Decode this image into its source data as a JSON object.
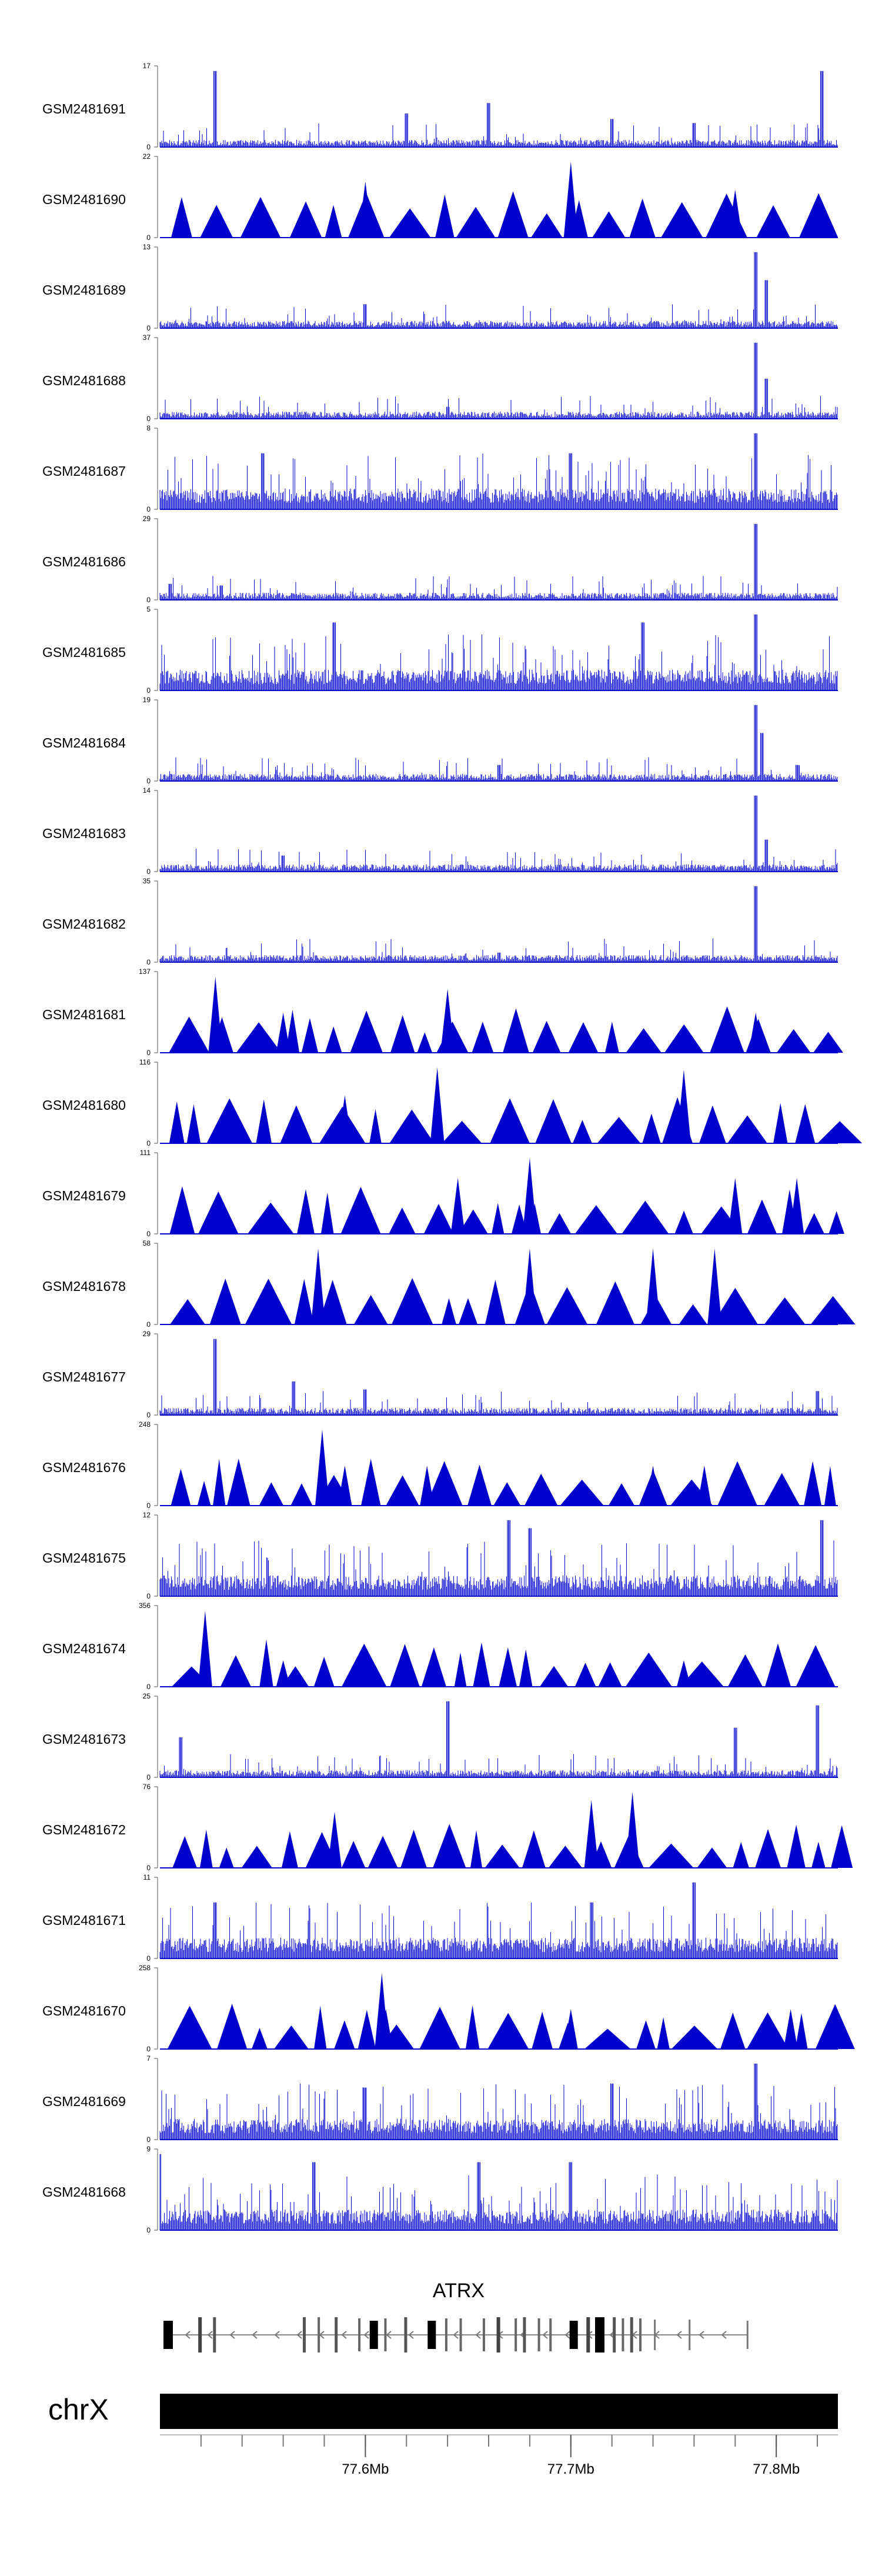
{
  "chart_data": {
    "type": "genome-coverage-tracks",
    "x_range_mb": [
      77.5,
      77.83
    ],
    "bar_color": "#0000cc",
    "tracks": [
      {
        "name": "GSM2481691",
        "ymax": "17",
        "ymin": "0",
        "style": "spiky",
        "peaks": [
          [
            77.527,
            0.95
          ],
          [
            77.62,
            0.42
          ],
          [
            77.66,
            0.55
          ],
          [
            77.72,
            0.35
          ],
          [
            77.76,
            0.3
          ],
          [
            77.822,
            0.95
          ]
        ]
      },
      {
        "name": "GSM2481690",
        "ymax": "22",
        "ymin": "0",
        "style": "triangles",
        "peaks": [
          [
            77.7,
            0.95
          ],
          [
            77.6,
            0.7
          ],
          [
            77.78,
            0.6
          ]
        ]
      },
      {
        "name": "GSM2481689",
        "ymax": "13",
        "ymin": "0",
        "style": "spiky",
        "peaks": [
          [
            77.79,
            0.95
          ],
          [
            77.795,
            0.6
          ],
          [
            77.6,
            0.3
          ]
        ]
      },
      {
        "name": "GSM2481688",
        "ymax": "37",
        "ymin": "0",
        "style": "spiky",
        "peaks": [
          [
            77.79,
            0.95
          ],
          [
            77.795,
            0.5
          ],
          [
            77.64,
            0.15
          ]
        ]
      },
      {
        "name": "GSM2481687",
        "ymax": "8",
        "ymin": "0",
        "style": "dense",
        "peaks": [
          [
            77.79,
            0.95
          ],
          [
            77.55,
            0.7
          ],
          [
            77.7,
            0.7
          ]
        ]
      },
      {
        "name": "GSM2481686",
        "ymax": "29",
        "ymin": "0",
        "style": "spiky",
        "peaks": [
          [
            77.79,
            0.95
          ],
          [
            77.505,
            0.2
          ],
          [
            77.53,
            0.18
          ]
        ]
      },
      {
        "name": "GSM2481685",
        "ymax": "5",
        "ymin": "0",
        "style": "dense",
        "peaks": [
          [
            77.79,
            0.95
          ],
          [
            77.585,
            0.85
          ],
          [
            77.735,
            0.85
          ]
        ]
      },
      {
        "name": "GSM2481684",
        "ymax": "19",
        "ymin": "0",
        "style": "spiky",
        "peaks": [
          [
            77.79,
            0.95
          ],
          [
            77.793,
            0.6
          ],
          [
            77.665,
            0.2
          ],
          [
            77.81,
            0.2
          ]
        ]
      },
      {
        "name": "GSM2481683",
        "ymax": "14",
        "ymin": "0",
        "style": "spiky",
        "peaks": [
          [
            77.79,
            0.95
          ],
          [
            77.795,
            0.4
          ],
          [
            77.56,
            0.2
          ]
        ]
      },
      {
        "name": "GSM2481682",
        "ymax": "35",
        "ymin": "0",
        "style": "spiky",
        "peaks": [
          [
            77.79,
            0.95
          ],
          [
            77.79,
            0.4
          ],
          [
            77.665,
            0.12
          ]
        ]
      },
      {
        "name": "GSM2481681",
        "ymax": "137",
        "ymin": "0",
        "style": "triangles",
        "peaks": [
          [
            77.527,
            0.95
          ],
          [
            77.64,
            0.8
          ],
          [
            77.56,
            0.5
          ],
          [
            77.79,
            0.5
          ]
        ]
      },
      {
        "name": "GSM2481680",
        "ymax": "116",
        "ymin": "0",
        "style": "triangles",
        "peaks": [
          [
            77.635,
            0.95
          ],
          [
            77.755,
            0.92
          ],
          [
            77.59,
            0.6
          ]
        ]
      },
      {
        "name": "GSM2481679",
        "ymax": "111",
        "ymin": "0",
        "style": "triangles",
        "peaks": [
          [
            77.68,
            0.95
          ],
          [
            77.645,
            0.7
          ],
          [
            77.81,
            0.7
          ],
          [
            77.78,
            0.7
          ]
        ]
      },
      {
        "name": "GSM2481678",
        "ymax": "58",
        "ymin": "0",
        "style": "triangles",
        "peaks": [
          [
            77.577,
            0.95
          ],
          [
            77.68,
            0.95
          ],
          [
            77.77,
            0.95
          ],
          [
            77.74,
            0.95
          ]
        ]
      },
      {
        "name": "GSM2481677",
        "ymax": "29",
        "ymin": "0",
        "style": "spiky",
        "peaks": [
          [
            77.527,
            0.95
          ],
          [
            77.565,
            0.42
          ],
          [
            77.6,
            0.32
          ],
          [
            77.82,
            0.3
          ]
        ]
      },
      {
        "name": "GSM2481676",
        "ymax": "248",
        "ymin": "0",
        "style": "triangles",
        "peaks": [
          [
            77.579,
            0.95
          ],
          [
            77.59,
            0.5
          ],
          [
            77.63,
            0.5
          ],
          [
            77.74,
            0.5
          ],
          [
            77.765,
            0.5
          ]
        ]
      },
      {
        "name": "GSM2481675",
        "ymax": "12",
        "ymin": "0",
        "style": "dense",
        "peaks": [
          [
            77.67,
            0.95
          ],
          [
            77.822,
            0.95
          ],
          [
            77.68,
            0.85
          ]
        ]
      },
      {
        "name": "GSM2481674",
        "ymax": "356",
        "ymin": "0",
        "style": "triangles",
        "peaks": [
          [
            77.522,
            0.95
          ],
          [
            77.56,
            0.33
          ],
          [
            77.755,
            0.33
          ]
        ]
      },
      {
        "name": "GSM2481673",
        "ymax": "25",
        "ymin": "0",
        "style": "spiky",
        "peaks": [
          [
            77.64,
            0.95
          ],
          [
            77.82,
            0.9
          ],
          [
            77.78,
            0.62
          ],
          [
            77.51,
            0.5
          ]
        ]
      },
      {
        "name": "GSM2481672",
        "ymax": "76",
        "ymin": "0",
        "style": "triangles",
        "peaks": [
          [
            77.73,
            0.95
          ],
          [
            77.71,
            0.85
          ],
          [
            77.585,
            0.7
          ]
        ]
      },
      {
        "name": "GSM2481671",
        "ymax": "11",
        "ymin": "0",
        "style": "dense",
        "peaks": [
          [
            77.76,
            0.95
          ],
          [
            77.71,
            0.7
          ],
          [
            77.527,
            0.7
          ]
        ]
      },
      {
        "name": "GSM2481670",
        "ymax": "258",
        "ymin": "0",
        "style": "triangles",
        "peaks": [
          [
            77.608,
            0.95
          ],
          [
            77.61,
            0.5
          ],
          [
            77.7,
            0.5
          ],
          [
            77.807,
            0.5
          ]
        ]
      },
      {
        "name": "GSM2481669",
        "ymax": "7",
        "ymin": "0",
        "style": "dense",
        "peaks": [
          [
            77.79,
            0.95
          ],
          [
            77.72,
            0.7
          ],
          [
            77.6,
            0.65
          ]
        ]
      },
      {
        "name": "GSM2481668",
        "ymax": "9",
        "ymin": "0",
        "style": "dense",
        "peaks": [
          [
            77.5,
            0.95
          ],
          [
            77.575,
            0.85
          ],
          [
            77.655,
            0.85
          ],
          [
            77.7,
            0.85
          ]
        ]
      }
    ],
    "gene": {
      "name": "ATRX",
      "strand": "-",
      "start_mb": 77.504,
      "end_mb": 77.786
    },
    "chromosome": "chrX",
    "x_ticks": [
      {
        "value": 77.6,
        "label": "77.6Mb"
      },
      {
        "value": 77.7,
        "label": "77.7Mb"
      },
      {
        "value": 77.8,
        "label": "77.8Mb"
      }
    ],
    "grid": false,
    "legend": "none"
  }
}
